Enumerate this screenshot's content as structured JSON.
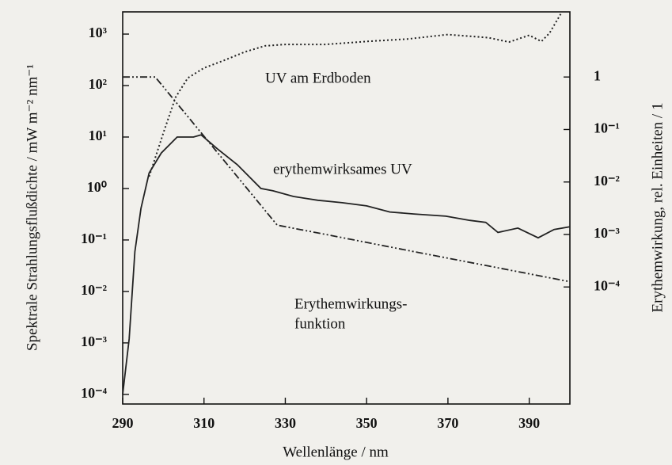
{
  "chart_data": {
    "type": "line",
    "xlabel": "Wellenlänge / nm",
    "ylabel": "Spektrale Strahlungsflußdichte / mW m⁻² nm⁻¹",
    "y2label": "Erythemwirkung, rel. Einheiten / 1",
    "xlim": [
      290,
      400
    ],
    "xticks": [
      290,
      310,
      330,
      350,
      370,
      390
    ],
    "ylim": [
      6.5e-05,
      2700
    ],
    "yscale": "log",
    "yticks": [
      {
        "value": 1000,
        "label": "10³"
      },
      {
        "value": 100,
        "label": "10²"
      },
      {
        "value": 10,
        "label": "10¹"
      },
      {
        "value": 1,
        "label": "10⁰"
      },
      {
        "value": 0.1,
        "label": "10⁻¹"
      },
      {
        "value": 0.01,
        "label": "10⁻²"
      },
      {
        "value": 0.001,
        "label": "10⁻³"
      },
      {
        "value": 0.0001,
        "label": "10⁻⁴"
      }
    ],
    "y2lim": [
      5.9e-07,
      17.4
    ],
    "y2scale": "log",
    "y2ticks": [
      1,
      {
        "value": 0.1,
        "label": "10⁻¹"
      },
      {
        "value": 0.01,
        "label": "10⁻²"
      },
      {
        "value": 0.001,
        "label": "10⁻³"
      },
      {
        "value": 0.0001,
        "label": "10⁻⁴"
      }
    ],
    "annotations": [
      "UV am Erdboden",
      "erythemwirksames UV",
      "Erythemwirkungs-",
      "funktion"
    ],
    "series": [
      {
        "color": "#222",
        "style": "dotted",
        "axis": "y",
        "x": [
          296.5,
          300,
          303,
          306,
          310,
          315,
          320,
          325,
          330,
          340,
          350,
          360,
          370,
          380,
          385,
          390,
          393,
          395,
          398
        ],
        "values": [
          1.7,
          12,
          59,
          140,
          220,
          310,
          450,
          590,
          630,
          630,
          720,
          800,
          980,
          850,
          700,
          950,
          720,
          1050,
          2650
        ]
      },
      {
        "color": "#222",
        "style": "solid",
        "axis": "y",
        "x": [
          290,
          291.6,
          293,
          294.5,
          296.5,
          299.5,
          303.4,
          307.4,
          309.3,
          313.3,
          318.2,
          324,
          327,
          332,
          338,
          344,
          350,
          355.7,
          361.6,
          369.5,
          375.4,
          379.3,
          382.3,
          387.2,
          392.2,
          396.1,
          400
        ],
        "values": [
          0.0001,
          0.0012,
          0.059,
          0.41,
          2.0,
          4.9,
          10,
          10,
          11,
          5.9,
          2.9,
          1.0,
          0.9,
          0.7,
          0.59,
          0.53,
          0.46,
          0.35,
          0.32,
          0.29,
          0.24,
          0.22,
          0.14,
          0.17,
          0.11,
          0.16,
          0.18
        ]
      },
      {
        "color": "#222",
        "style": "dashdot",
        "axis": "y2",
        "x": [
          290,
          295,
          298,
          310,
          320,
          328,
          340,
          360,
          380,
          400
        ],
        "values": [
          1,
          1,
          1,
          0.0745,
          0.00855,
          0.00151,
          0.001,
          0.0005,
          0.000251,
          0.000126
        ]
      }
    ]
  }
}
